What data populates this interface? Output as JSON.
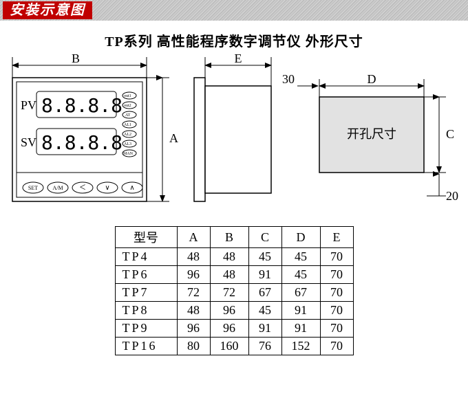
{
  "header": {
    "banner": "安装示意图",
    "title": "TP系列 高性能程序数字调节仪 外形尺寸"
  },
  "panel_labels": {
    "pv": "PV",
    "sv": "SV",
    "seg_display": "8.8.8.8",
    "buttons": {
      "set": "SET",
      "am": "A/M",
      "left": "＜",
      "down": "∨",
      "up": "∧"
    },
    "indicators": [
      "out1",
      "out2",
      "AT",
      "AL1",
      "AL2",
      "AL3",
      "MAN"
    ]
  },
  "dim_labels": {
    "A": "A",
    "B": "B",
    "C": "C",
    "D": "D",
    "E": "E",
    "thirty": "30",
    "twenty": "20",
    "cutout": "开孔尺寸"
  },
  "table": {
    "headers": [
      "型号",
      "A",
      "B",
      "C",
      "D",
      "E"
    ],
    "rows": [
      [
        "TP4",
        "48",
        "48",
        "45",
        "45",
        "70"
      ],
      [
        "TP6",
        "96",
        "48",
        "91",
        "45",
        "70"
      ],
      [
        "TP7",
        "72",
        "72",
        "67",
        "67",
        "70"
      ],
      [
        "TP8",
        "48",
        "96",
        "45",
        "91",
        "70"
      ],
      [
        "TP9",
        "96",
        "96",
        "91",
        "91",
        "70"
      ],
      [
        "TP16",
        "80",
        "160",
        "76",
        "152",
        "70"
      ]
    ]
  },
  "style": {
    "accent": "#c00000",
    "panel_fill": "#ffffff",
    "panel_stroke": "#000000",
    "cutout_fill": "#e2e2e2"
  }
}
